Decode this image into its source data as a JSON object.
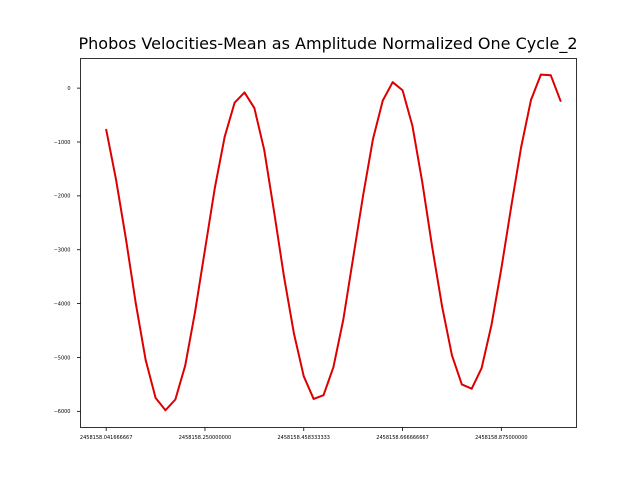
{
  "chart_data": {
    "type": "line",
    "title": "Phobos Velocities-Mean as Amplitude Normalized One Cycle_2",
    "xlabel": "",
    "ylabel": "",
    "x_start": "2458158.041666667",
    "x_step": "0.020833333",
    "xlim": [
      2458157.9875,
      2458159.0335
    ],
    "ylim": [
      -6300,
      550
    ],
    "grid": false,
    "legend": "none",
    "line_color": "#dd0000",
    "x_ticks": [
      {
        "value": 2458158.041666667,
        "label": "2458158.041666667"
      },
      {
        "value": 2458158.25,
        "label": "2458158.250000000"
      },
      {
        "value": 2458158.458333333,
        "label": "2458158.458333333"
      },
      {
        "value": 2458158.666666667,
        "label": "2458158.666666667"
      },
      {
        "value": 2458158.875,
        "label": "2458158.875000000"
      }
    ],
    "y_ticks": [
      {
        "value": 0,
        "label": "0"
      },
      {
        "value": -1000,
        "label": "−1000"
      },
      {
        "value": -2000,
        "label": "−2000"
      },
      {
        "value": -3000,
        "label": "−3000"
      },
      {
        "value": -4000,
        "label": "−4000"
      },
      {
        "value": -5000,
        "label": "−5000"
      },
      {
        "value": -6000,
        "label": "−6000"
      }
    ],
    "series": [
      {
        "values": [
          -770,
          -1700,
          -2800,
          -4000,
          -5050,
          -5750,
          -5980,
          -5780,
          -5150,
          -4150,
          -3000,
          -1850,
          -900,
          -270,
          -80,
          -370,
          -1150,
          -2300,
          -3500,
          -4550,
          -5350,
          -5770,
          -5700,
          -5180,
          -4300,
          -3150,
          -2000,
          -950,
          -230,
          110,
          -40,
          -700,
          -1750,
          -2950,
          -4050,
          -4960,
          -5500,
          -5580,
          -5200,
          -4400,
          -3350,
          -2200,
          -1100,
          -220,
          250,
          240,
          -240
        ]
      }
    ]
  }
}
